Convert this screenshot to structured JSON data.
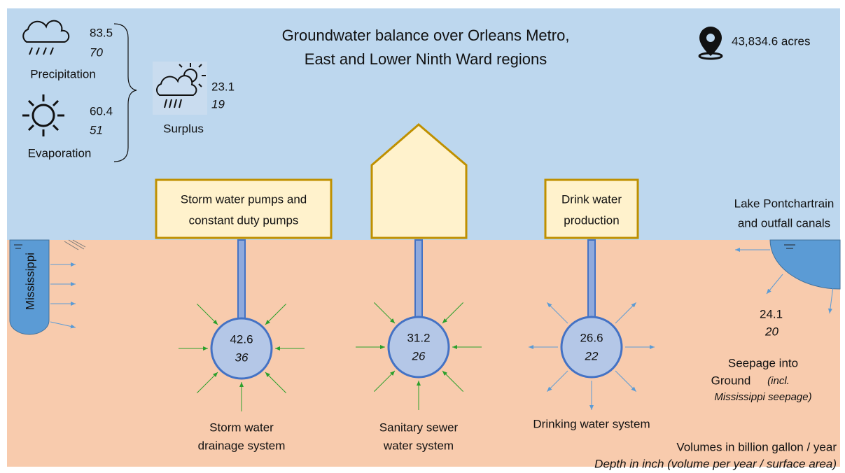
{
  "title": {
    "line1": "Groundwater balance over Orleans Metro,",
    "line2": "East and Lower Ninth Ward regions"
  },
  "area": "43,834.6 acres",
  "precipitation": {
    "volume": "83.5",
    "depth": "70",
    "label": "Precipitation"
  },
  "evaporation": {
    "volume": "60.4",
    "depth": "51",
    "label": "Evaporation"
  },
  "surplus": {
    "volume": "23.1",
    "depth": "19",
    "label": "Surplus"
  },
  "pumps_box": {
    "line1": "Storm water pumps and",
    "line2": "constant duty pumps"
  },
  "drink_box": {
    "line1": "Drink water",
    "line2": "production"
  },
  "lake": {
    "line1": "Lake Pontchartrain",
    "line2": "and outfall canals"
  },
  "river": "Mississippi",
  "nodes": [
    {
      "volume": "42.6",
      "depth": "36",
      "label1": "Storm water",
      "label2": "drainage system"
    },
    {
      "volume": "31.2",
      "depth": "26",
      "label1": "Sanitary sewer",
      "label2": "water system"
    },
    {
      "volume": "26.6",
      "depth": "22",
      "label1": "Drinking water system"
    }
  ],
  "seepage": {
    "volume": "24.1",
    "depth": "20",
    "line1": "Seepage into",
    "line2": "Ground",
    "line2_note": "(incl.",
    "line3": "Mississippi seepage)"
  },
  "legend": {
    "line1": "Volumes in billion gallon / year",
    "line2": "Depth in inch (volume per year / surface area)"
  }
}
